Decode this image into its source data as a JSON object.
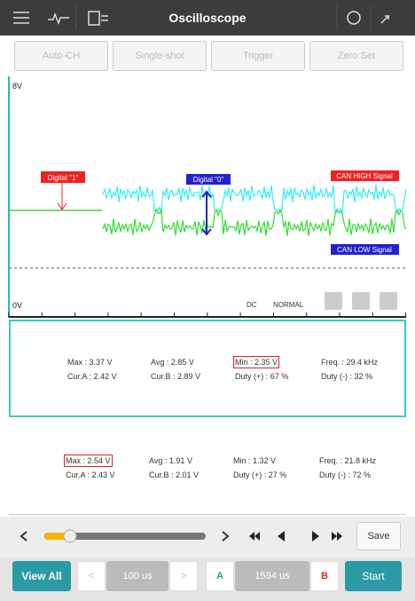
{
  "header": {
    "title": "Oscilloscope"
  },
  "toolbar": {
    "buttons": [
      "Auto-CH",
      "Single-shot",
      "Trigger",
      "Zero Set"
    ]
  },
  "scope": {
    "y_max_label": "8V",
    "y_min_label": "0V",
    "labels": {
      "digital_1": "Digital \"1\"",
      "digital_0": "Digital \"0\"",
      "can_high": "CAN HIGH Signal",
      "can_low": "CAN LOW Signal"
    },
    "coupling": "DC",
    "mode": "NORMAL"
  },
  "channel_a": {
    "rows": [
      [
        "Max : 3.37 V",
        "Avg : 2.85 V",
        "Min : 2.35 V",
        "Freq. : 29.4 kHz"
      ],
      [
        "Cur.A : 2.42 V",
        "Cur.B : 2.89 V",
        "Duty (+) : 67 %",
        "Duty (-) : 32 %"
      ]
    ]
  },
  "channel_b": {
    "rows": [
      [
        "Max : 2.54 V",
        "Avg : 1.91 V",
        "Min : 1.32 V",
        "Freq. : 21.8 kHz"
      ],
      [
        "Cur.A : 2.43 V",
        "Cur.B : 2.01 V",
        "Duty (+) : 27 %",
        "Duty (-) : 72 %"
      ]
    ]
  },
  "controls": {
    "save": "Save",
    "view_all": "View All",
    "time_div": "100 us",
    "cursor_a": "A",
    "cursor_span": "1594 us",
    "cursor_b": "B",
    "start": "Start"
  }
}
